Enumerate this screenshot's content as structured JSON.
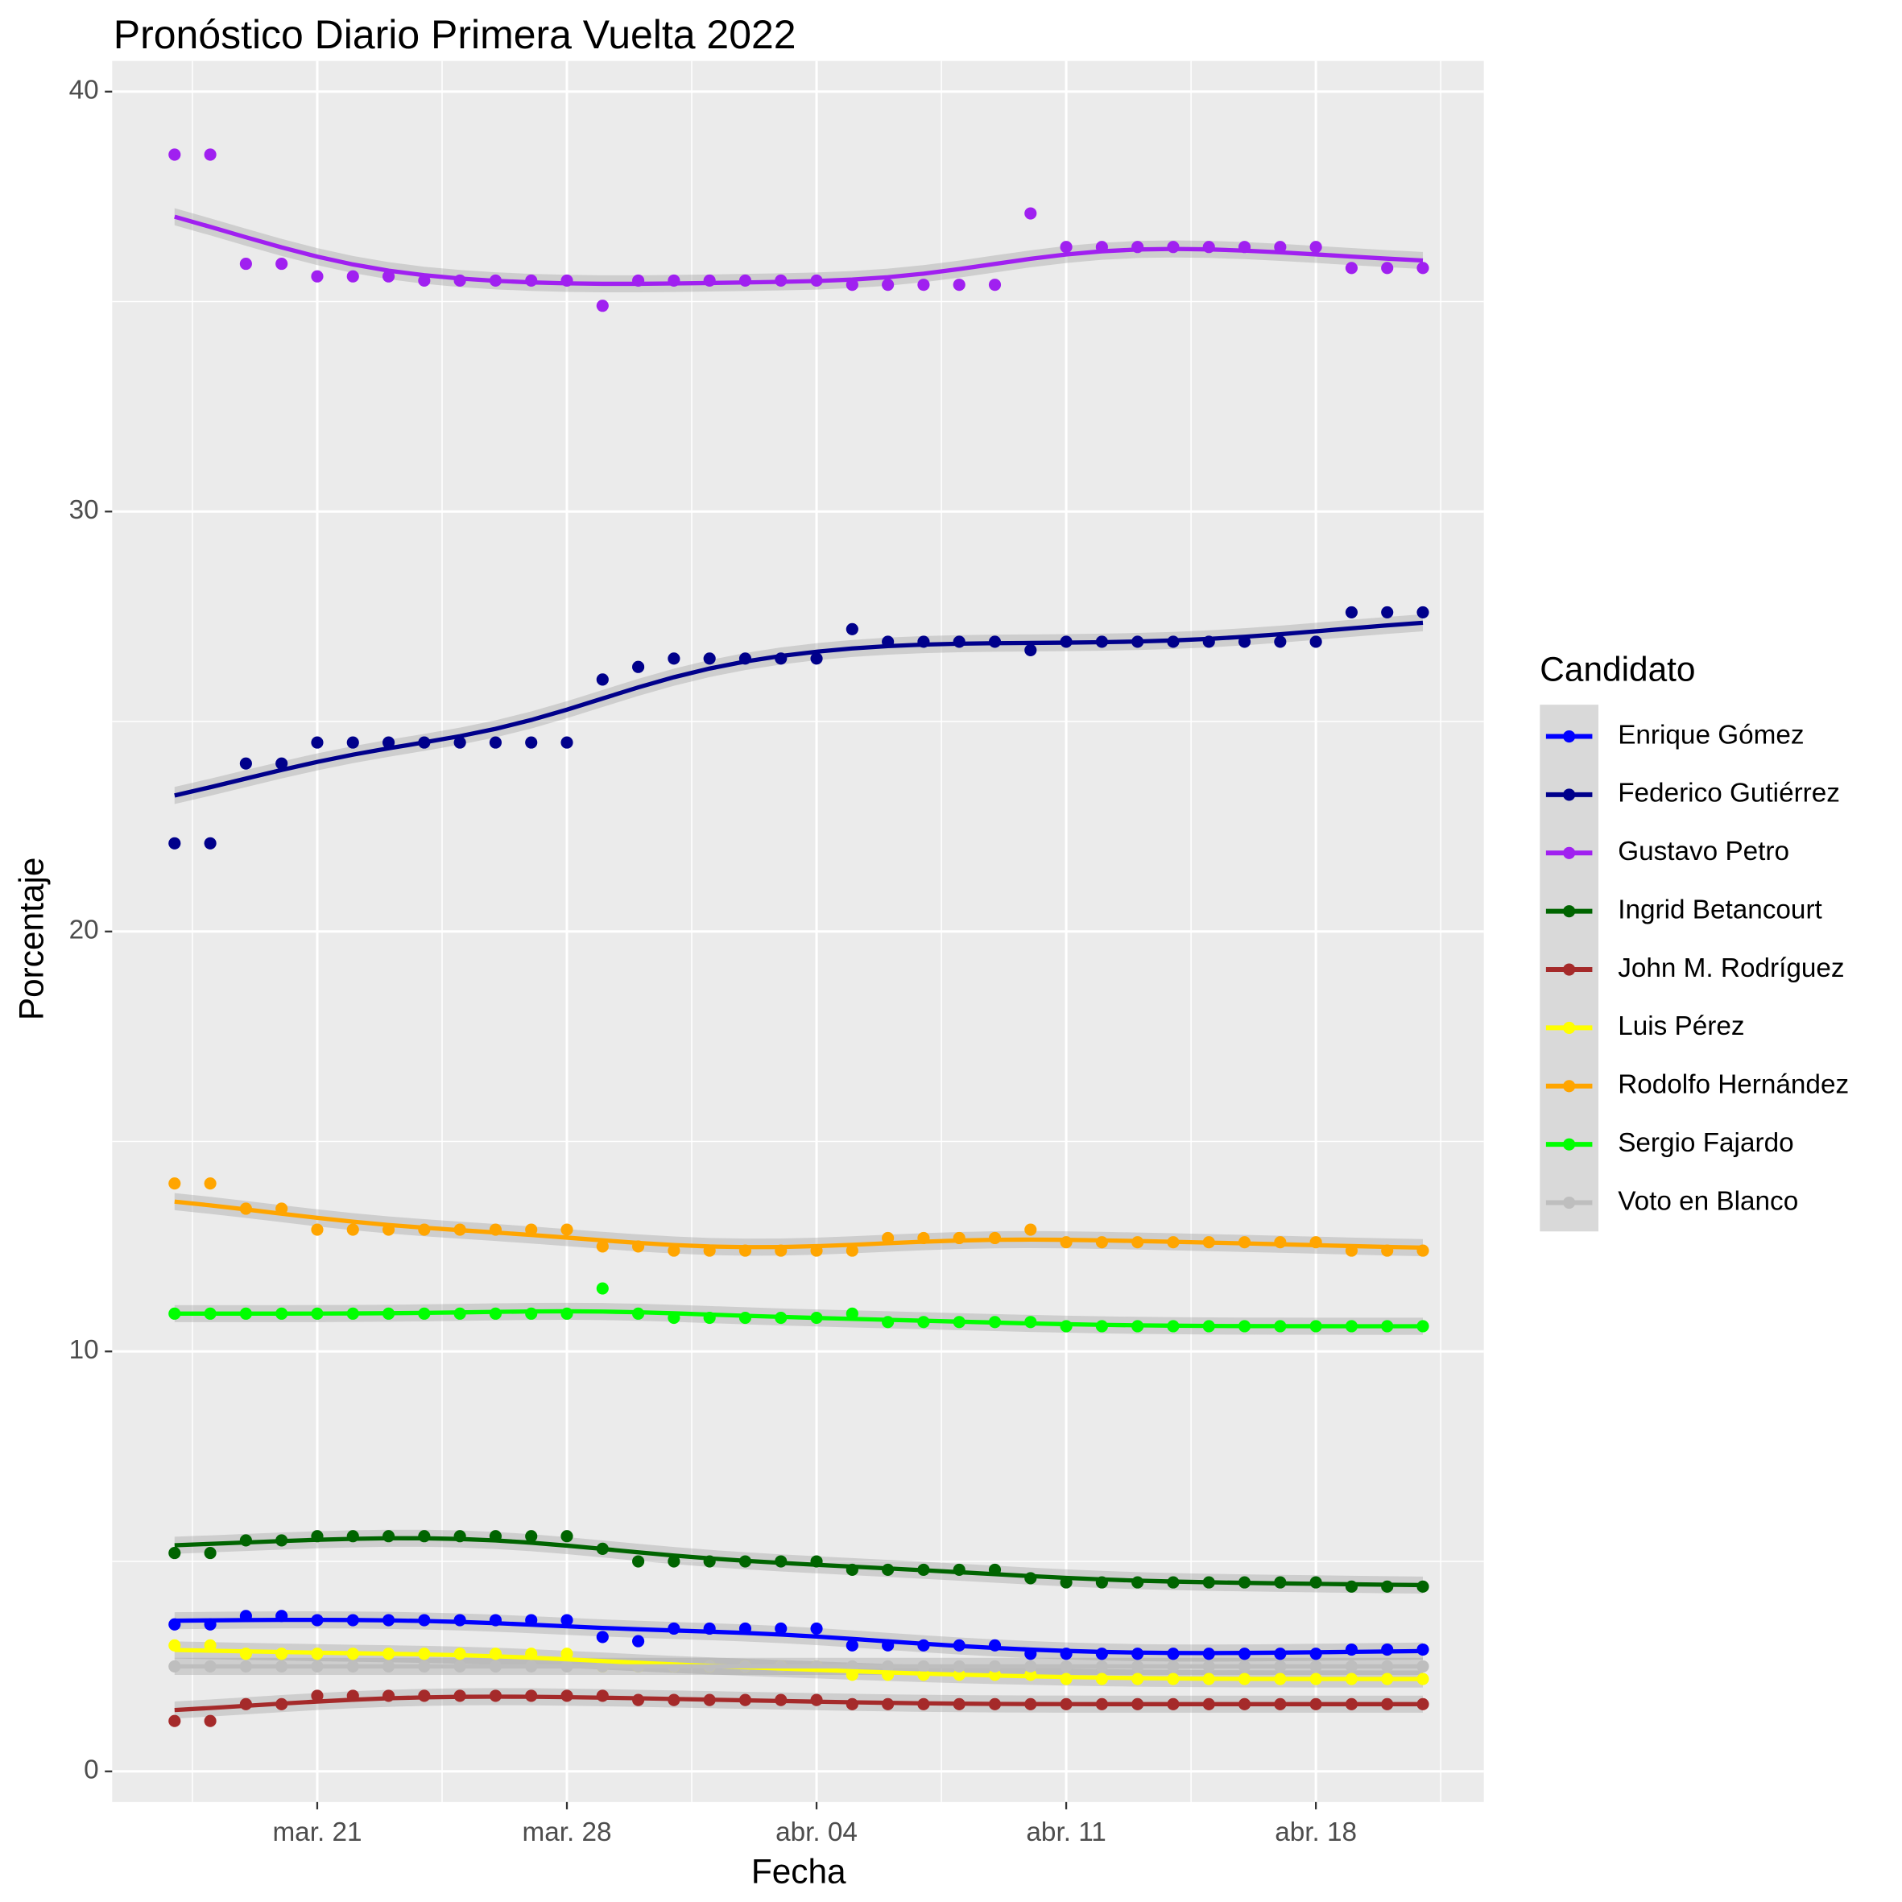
{
  "chart_data": {
    "type": "line",
    "title": "Pronóstico Diario Primera Vuelta 2022",
    "x_label": "Fecha",
    "y_label": "Porcentaje",
    "legend_title": "Candidato",
    "x": [
      "2022-03-17",
      "2022-03-18",
      "2022-03-19",
      "2022-03-20",
      "2022-03-21",
      "2022-03-22",
      "2022-03-23",
      "2022-03-24",
      "2022-03-25",
      "2022-03-26",
      "2022-03-27",
      "2022-03-28",
      "2022-03-29",
      "2022-03-30",
      "2022-03-31",
      "2022-04-01",
      "2022-04-02",
      "2022-04-03",
      "2022-04-04",
      "2022-04-05",
      "2022-04-06",
      "2022-04-07",
      "2022-04-08",
      "2022-04-09",
      "2022-04-10",
      "2022-04-11",
      "2022-04-12",
      "2022-04-13",
      "2022-04-14",
      "2022-04-15",
      "2022-04-16",
      "2022-04-17",
      "2022-04-18",
      "2022-04-19",
      "2022-04-20",
      "2022-04-21"
    ],
    "xlim": [
      "2022-03-15T06:00:00Z",
      "2022-04-22T17:00:00Z"
    ],
    "xticks": [
      {
        "value": "2022-03-21",
        "label": "mar. 21"
      },
      {
        "value": "2022-03-28",
        "label": "mar. 28"
      },
      {
        "value": "2022-04-04",
        "label": "abr. 04"
      },
      {
        "value": "2022-04-11",
        "label": "abr. 11"
      },
      {
        "value": "2022-04-18",
        "label": "abr. 18"
      }
    ],
    "ylim": [
      -0.73,
      40.73
    ],
    "yticks": [
      0,
      10,
      20,
      30,
      40
    ],
    "grid": true,
    "legend": "right",
    "series": [
      {
        "name": "Enrique Gómez",
        "color": "#0000ff",
        "values": [
          3.5,
          3.5,
          3.7,
          3.7,
          3.6,
          3.6,
          3.6,
          3.6,
          3.6,
          3.6,
          3.6,
          3.6,
          3.2,
          3.1,
          3.4,
          3.4,
          3.4,
          3.4,
          3.4,
          3.0,
          3.0,
          3.0,
          3.0,
          3.0,
          2.8,
          2.8,
          2.8,
          2.8,
          2.8,
          2.8,
          2.8,
          2.8,
          2.8,
          2.9,
          2.9,
          2.9
        ]
      },
      {
        "name": "Federico Gutiérrez",
        "color": "#00008b",
        "values": [
          22.1,
          22.1,
          24.0,
          24.0,
          24.5,
          24.5,
          24.5,
          24.5,
          24.5,
          24.5,
          24.5,
          24.5,
          26.0,
          26.3,
          26.5,
          26.5,
          26.5,
          26.5,
          26.5,
          27.2,
          26.9,
          26.9,
          26.9,
          26.9,
          26.7,
          26.9,
          26.9,
          26.9,
          26.9,
          26.9,
          26.9,
          26.9,
          26.9,
          27.6,
          27.6,
          27.6
        ]
      },
      {
        "name": "Gustavo Petro",
        "color": "#a020f0",
        "values": [
          38.5,
          38.5,
          35.9,
          35.9,
          35.6,
          35.6,
          35.6,
          35.5,
          35.5,
          35.5,
          35.5,
          35.5,
          34.9,
          35.5,
          35.5,
          35.5,
          35.5,
          35.5,
          35.5,
          35.4,
          35.4,
          35.4,
          35.4,
          35.4,
          37.1,
          36.3,
          36.3,
          36.3,
          36.3,
          36.3,
          36.3,
          36.3,
          36.3,
          35.8,
          35.8,
          35.8
        ]
      },
      {
        "name": "Ingrid Betancourt",
        "color": "#006400",
        "values": [
          5.2,
          5.2,
          5.5,
          5.5,
          5.6,
          5.6,
          5.6,
          5.6,
          5.6,
          5.6,
          5.6,
          5.6,
          5.3,
          5.0,
          5.0,
          5.0,
          5.0,
          5.0,
          5.0,
          4.8,
          4.8,
          4.8,
          4.8,
          4.8,
          4.6,
          4.5,
          4.5,
          4.5,
          4.5,
          4.5,
          4.5,
          4.5,
          4.5,
          4.4,
          4.4,
          4.4
        ]
      },
      {
        "name": "John M. Rodríguez",
        "color": "#a52a2a",
        "values": [
          1.2,
          1.2,
          1.6,
          1.6,
          1.8,
          1.8,
          1.8,
          1.8,
          1.8,
          1.8,
          1.8,
          1.8,
          1.8,
          1.7,
          1.7,
          1.7,
          1.7,
          1.7,
          1.7,
          1.6,
          1.6,
          1.6,
          1.6,
          1.6,
          1.6,
          1.6,
          1.6,
          1.6,
          1.6,
          1.6,
          1.6,
          1.6,
          1.6,
          1.6,
          1.6,
          1.6
        ]
      },
      {
        "name": "Luis Pérez",
        "color": "#ffff00",
        "values": [
          3.0,
          3.0,
          2.8,
          2.8,
          2.8,
          2.8,
          2.8,
          2.8,
          2.8,
          2.8,
          2.8,
          2.8,
          2.5,
          2.5,
          2.5,
          2.5,
          2.5,
          2.5,
          2.5,
          2.3,
          2.3,
          2.3,
          2.3,
          2.3,
          2.3,
          2.2,
          2.2,
          2.2,
          2.2,
          2.2,
          2.2,
          2.2,
          2.2,
          2.2,
          2.2,
          2.2
        ]
      },
      {
        "name": "Rodolfo Hernández",
        "color": "#ffa500",
        "values": [
          14.0,
          14.0,
          13.4,
          13.4,
          12.9,
          12.9,
          12.9,
          12.9,
          12.9,
          12.9,
          12.9,
          12.9,
          12.5,
          12.5,
          12.4,
          12.4,
          12.4,
          12.4,
          12.4,
          12.4,
          12.7,
          12.7,
          12.7,
          12.7,
          12.9,
          12.6,
          12.6,
          12.6,
          12.6,
          12.6,
          12.6,
          12.6,
          12.6,
          12.4,
          12.4,
          12.4
        ]
      },
      {
        "name": "Sergio Fajardo",
        "color": "#00ff00",
        "values": [
          10.9,
          10.9,
          10.9,
          10.9,
          10.9,
          10.9,
          10.9,
          10.9,
          10.9,
          10.9,
          10.9,
          10.9,
          11.5,
          10.9,
          10.8,
          10.8,
          10.8,
          10.8,
          10.8,
          10.9,
          10.7,
          10.7,
          10.7,
          10.7,
          10.7,
          10.6,
          10.6,
          10.6,
          10.6,
          10.6,
          10.6,
          10.6,
          10.6,
          10.6,
          10.6,
          10.6
        ]
      },
      {
        "name": "Voto en Blanco",
        "color": "#bebebe",
        "values": [
          2.5,
          2.5,
          2.5,
          2.5,
          2.5,
          2.5,
          2.5,
          2.5,
          2.5,
          2.5,
          2.5,
          2.5,
          2.5,
          2.5,
          2.5,
          2.5,
          2.5,
          2.5,
          2.5,
          2.5,
          2.5,
          2.5,
          2.5,
          2.5,
          2.5,
          2.5,
          2.5,
          2.5,
          2.5,
          2.5,
          2.5,
          2.5,
          2.5,
          2.5,
          2.5,
          2.5
        ]
      }
    ]
  }
}
